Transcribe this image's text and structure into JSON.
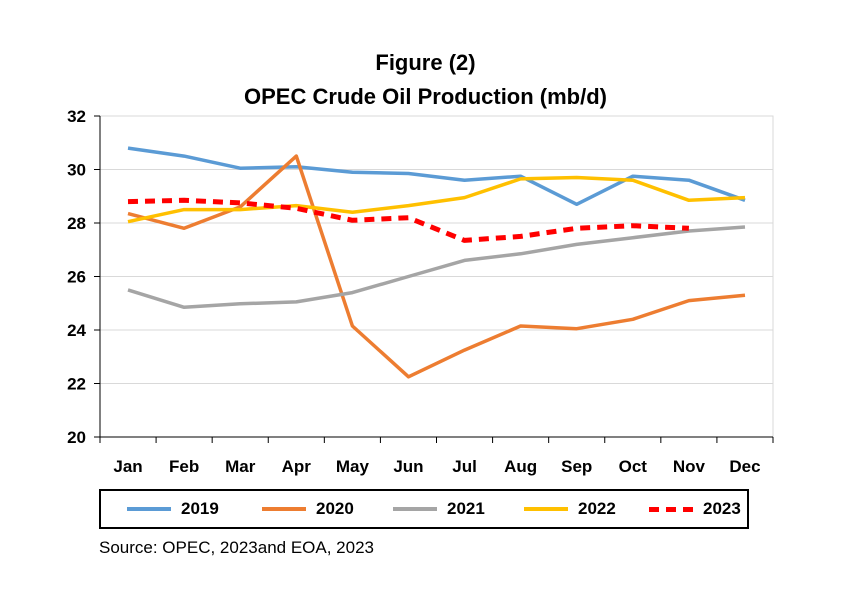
{
  "chart_data": {
    "type": "line",
    "title": "Figure (2)",
    "subtitle": "OPEC Crude Oil Production (mb/d)",
    "categories": [
      "Jan",
      "Feb",
      "Mar",
      "Apr",
      "May",
      "Jun",
      "Jul",
      "Aug",
      "Sep",
      "Oct",
      "Nov",
      "Dec"
    ],
    "ylim": [
      20,
      32
    ],
    "yticks": [
      20,
      22,
      24,
      26,
      28,
      30,
      32
    ],
    "grid": true,
    "legend_position": "bottom",
    "series": [
      {
        "name": "2019",
        "color": "#5b9bd5",
        "dashed": false,
        "values": [
          30.8,
          30.5,
          30.05,
          30.1,
          29.9,
          29.85,
          29.6,
          29.75,
          28.7,
          29.75,
          29.6,
          28.85
        ]
      },
      {
        "name": "2020",
        "color": "#ed7d31",
        "dashed": false,
        "values": [
          28.35,
          27.8,
          28.6,
          30.5,
          24.15,
          22.25,
          23.25,
          24.15,
          24.05,
          24.4,
          25.1,
          25.3
        ]
      },
      {
        "name": "2021",
        "color": "#a5a5a5",
        "dashed": false,
        "values": [
          25.5,
          24.85,
          24.98,
          25.05,
          25.4,
          26.0,
          26.6,
          26.85,
          27.2,
          27.45,
          27.7,
          27.85
        ]
      },
      {
        "name": "2022",
        "color": "#ffc000",
        "dashed": false,
        "values": [
          28.05,
          28.5,
          28.5,
          28.65,
          28.4,
          28.65,
          28.95,
          29.65,
          29.7,
          29.6,
          28.85,
          28.95
        ]
      },
      {
        "name": "2023",
        "color": "#ff0000",
        "dashed": true,
        "values": [
          28.8,
          28.85,
          28.75,
          28.55,
          28.1,
          28.2,
          27.35,
          27.5,
          27.8,
          27.9,
          27.8,
          null
        ]
      }
    ]
  },
  "source_text": "Source: OPEC, 2023and EOA, 2023"
}
